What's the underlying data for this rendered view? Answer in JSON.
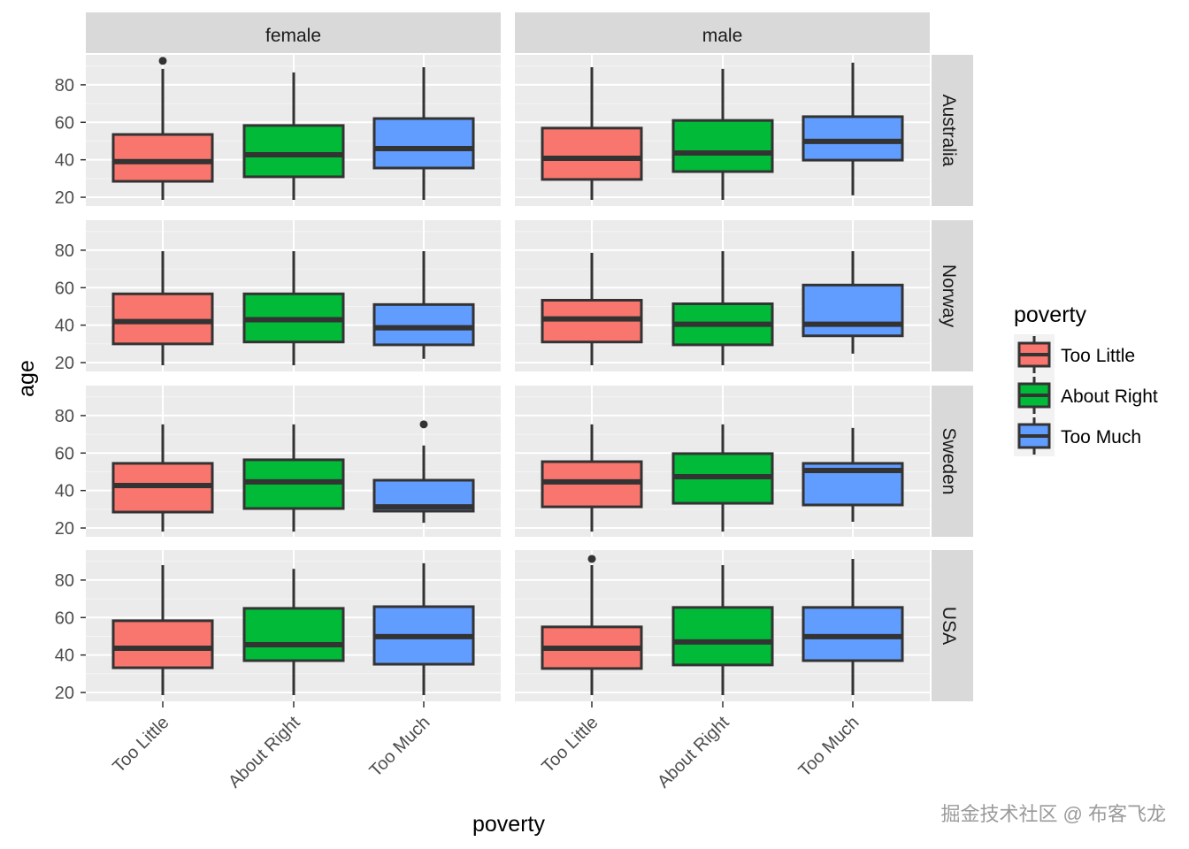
{
  "chart_data": {
    "type": "boxplot",
    "xlabel": "poverty",
    "ylabel": "age",
    "ylim": [
      15.3,
      96
    ],
    "yticks": [
      20,
      40,
      60,
      80
    ],
    "categories": [
      "Too Little",
      "About Right",
      "Too Much"
    ],
    "col_facets": [
      "female",
      "male"
    ],
    "row_facets": [
      "Australia",
      "Norway",
      "Sweden",
      "USA"
    ],
    "colors": {
      "Too Little": "#F8766D",
      "About Right": "#00BA38",
      "Too Much": "#619CFF"
    },
    "legend": {
      "title": "poverty",
      "entries": [
        "Too Little",
        "About Right",
        "Too Much"
      ],
      "position": "right"
    },
    "grid": true,
    "panels": {
      "Australia": {
        "female": [
          {
            "low": 18.6,
            "q1": 28.5,
            "median": 39,
            "q3": 53.5,
            "high": 88.5,
            "outliers": [
              92.8
            ]
          },
          {
            "low": 18.6,
            "q1": 30.9,
            "median": 42.7,
            "q3": 58.3,
            "high": 86.6,
            "outliers": []
          },
          {
            "low": 18.6,
            "q1": 35.6,
            "median": 46,
            "q3": 62,
            "high": 89.4,
            "outliers": []
          }
        ],
        "male": [
          {
            "low": 18.6,
            "q1": 29.5,
            "median": 40.8,
            "q3": 56.9,
            "high": 89.4,
            "outliers": []
          },
          {
            "low": 18.6,
            "q1": 33.7,
            "median": 43.6,
            "q3": 61,
            "high": 88.5,
            "outliers": []
          },
          {
            "low": 21,
            "q1": 39.8,
            "median": 49.8,
            "q3": 63,
            "high": 91.8,
            "outliers": []
          }
        ]
      },
      "Norway": {
        "female": [
          {
            "low": 18.6,
            "q1": 30,
            "median": 41.9,
            "q3": 56.7,
            "high": 79.5,
            "outliers": []
          },
          {
            "low": 18.6,
            "q1": 31,
            "median": 42.9,
            "q3": 56.7,
            "high": 79.5,
            "outliers": []
          },
          {
            "low": 22,
            "q1": 29.5,
            "median": 38.6,
            "q3": 51,
            "high": 79.5,
            "outliers": []
          }
        ],
        "male": [
          {
            "low": 18.6,
            "q1": 31,
            "median": 43.3,
            "q3": 53.3,
            "high": 78.6,
            "outliers": []
          },
          {
            "low": 18.6,
            "q1": 29.5,
            "median": 40.5,
            "q3": 51.4,
            "high": 79.5,
            "outliers": []
          },
          {
            "low": 24.8,
            "q1": 34.3,
            "median": 40.5,
            "q3": 61.4,
            "high": 79.5,
            "outliers": []
          }
        ]
      },
      "Sweden": {
        "female": [
          {
            "low": 18.1,
            "q1": 28.5,
            "median": 42.7,
            "q3": 54.5,
            "high": 75.3,
            "outliers": []
          },
          {
            "low": 18.1,
            "q1": 30.4,
            "median": 44.6,
            "q3": 56.4,
            "high": 75.3,
            "outliers": []
          },
          {
            "low": 22.8,
            "q1": 29,
            "median": 31.3,
            "q3": 45.5,
            "high": 64,
            "outliers": [
              75.3
            ]
          }
        ],
        "male": [
          {
            "low": 18.1,
            "q1": 31.3,
            "median": 44.6,
            "q3": 55.4,
            "high": 75.3,
            "outliers": []
          },
          {
            "low": 18.1,
            "q1": 33.2,
            "median": 47.4,
            "q3": 59.7,
            "high": 75.3,
            "outliers": []
          },
          {
            "low": 23.3,
            "q1": 32.3,
            "median": 50.7,
            "q3": 54.5,
            "high": 73.4,
            "outliers": []
          }
        ]
      },
      "USA": {
        "female": [
          {
            "low": 18.6,
            "q1": 33.2,
            "median": 43.6,
            "q3": 58.3,
            "high": 88,
            "outliers": []
          },
          {
            "low": 18.6,
            "q1": 37,
            "median": 45.5,
            "q3": 64.9,
            "high": 86,
            "outliers": []
          },
          {
            "low": 18.6,
            "q1": 35.1,
            "median": 49.8,
            "q3": 65.8,
            "high": 89,
            "outliers": []
          }
        ],
        "male": [
          {
            "low": 18.6,
            "q1": 32.8,
            "median": 43.6,
            "q3": 55,
            "high": 88,
            "outliers": [
              91.3
            ]
          },
          {
            "low": 18.6,
            "q1": 34.7,
            "median": 47,
            "q3": 65.4,
            "high": 88,
            "outliers": []
          },
          {
            "low": 18.6,
            "q1": 37,
            "median": 49.8,
            "q3": 65.4,
            "high": 91.3,
            "outliers": []
          }
        ]
      }
    }
  },
  "watermark": "掘金技术社区 @ 布客飞龙"
}
